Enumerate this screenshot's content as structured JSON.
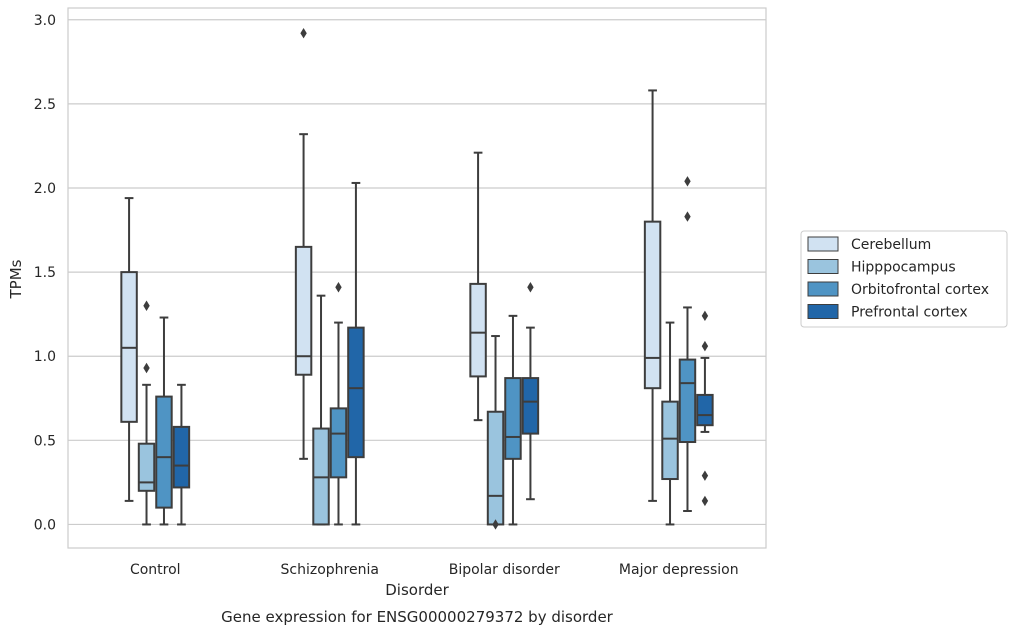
{
  "chart_data": {
    "type": "boxplot",
    "xlabel": "Disorder",
    "ylabel": "TPMs",
    "caption": "Gene expression for ENSG00000279372 by disorder",
    "ylim": [
      -0.14,
      3.07
    ],
    "yticks": [
      "0.0",
      "0.5",
      "1.0",
      "1.5",
      "2.0",
      "2.5",
      "3.0"
    ],
    "grid": "horizontal",
    "legend_position": "right",
    "categories": [
      "Control",
      "Schizophrenia",
      "Bipolar disorder",
      "Major depression"
    ],
    "series": [
      {
        "name": "Cerebellum",
        "color": "#d1e2f2",
        "boxes": [
          {
            "q1": 0.61,
            "median": 1.05,
            "q3": 1.5,
            "whisker_low": 0.14,
            "whisker_high": 1.94,
            "outliers": []
          },
          {
            "q1": 0.89,
            "median": 1.0,
            "q3": 1.65,
            "whisker_low": 0.39,
            "whisker_high": 2.32,
            "outliers": [
              2.92
            ]
          },
          {
            "q1": 0.88,
            "median": 1.14,
            "q3": 1.43,
            "whisker_low": 0.62,
            "whisker_high": 2.21,
            "outliers": []
          },
          {
            "q1": 0.81,
            "median": 0.99,
            "q3": 1.8,
            "whisker_low": 0.14,
            "whisker_high": 2.58,
            "outliers": []
          }
        ]
      },
      {
        "name": "Hipppocampus",
        "color": "#9ac4de",
        "boxes": [
          {
            "q1": 0.2,
            "median": 0.25,
            "q3": 0.48,
            "whisker_low": 0.0,
            "whisker_high": 0.83,
            "outliers": [
              1.3,
              0.93
            ]
          },
          {
            "q1": 0.0,
            "median": 0.28,
            "q3": 0.57,
            "whisker_low": 0.0,
            "whisker_high": 1.36,
            "outliers": []
          },
          {
            "q1": 0.0,
            "median": 0.17,
            "q3": 0.67,
            "whisker_low": 0.0,
            "whisker_high": 1.12,
            "outliers": [
              0.0
            ]
          },
          {
            "q1": 0.27,
            "median": 0.51,
            "q3": 0.73,
            "whisker_low": 0.0,
            "whisker_high": 1.2,
            "outliers": []
          }
        ]
      },
      {
        "name": "Orbitofrontal cortex",
        "color": "#4f94c4",
        "boxes": [
          {
            "q1": 0.1,
            "median": 0.4,
            "q3": 0.76,
            "whisker_low": 0.0,
            "whisker_high": 1.23,
            "outliers": []
          },
          {
            "q1": 0.28,
            "median": 0.54,
            "q3": 0.69,
            "whisker_low": 0.0,
            "whisker_high": 1.2,
            "outliers": [
              1.41
            ]
          },
          {
            "q1": 0.39,
            "median": 0.52,
            "q3": 0.87,
            "whisker_low": 0.0,
            "whisker_high": 1.24,
            "outliers": []
          },
          {
            "q1": 0.49,
            "median": 0.84,
            "q3": 0.98,
            "whisker_low": 0.08,
            "whisker_high": 1.29,
            "outliers": [
              2.04,
              1.83
            ]
          }
        ]
      },
      {
        "name": "Prefrontal cortex",
        "color": "#2166a8",
        "boxes": [
          {
            "q1": 0.22,
            "median": 0.35,
            "q3": 0.58,
            "whisker_low": 0.0,
            "whisker_high": 0.83,
            "outliers": []
          },
          {
            "q1": 0.4,
            "median": 0.81,
            "q3": 1.17,
            "whisker_low": 0.0,
            "whisker_high": 2.03,
            "outliers": []
          },
          {
            "q1": 0.54,
            "median": 0.73,
            "q3": 0.87,
            "whisker_low": 0.15,
            "whisker_high": 1.17,
            "outliers": [
              1.41
            ]
          },
          {
            "q1": 0.59,
            "median": 0.65,
            "q3": 0.77,
            "whisker_low": 0.55,
            "whisker_high": 0.99,
            "outliers": [
              1.24,
              1.06,
              0.29,
              0.14
            ]
          }
        ]
      }
    ]
  }
}
